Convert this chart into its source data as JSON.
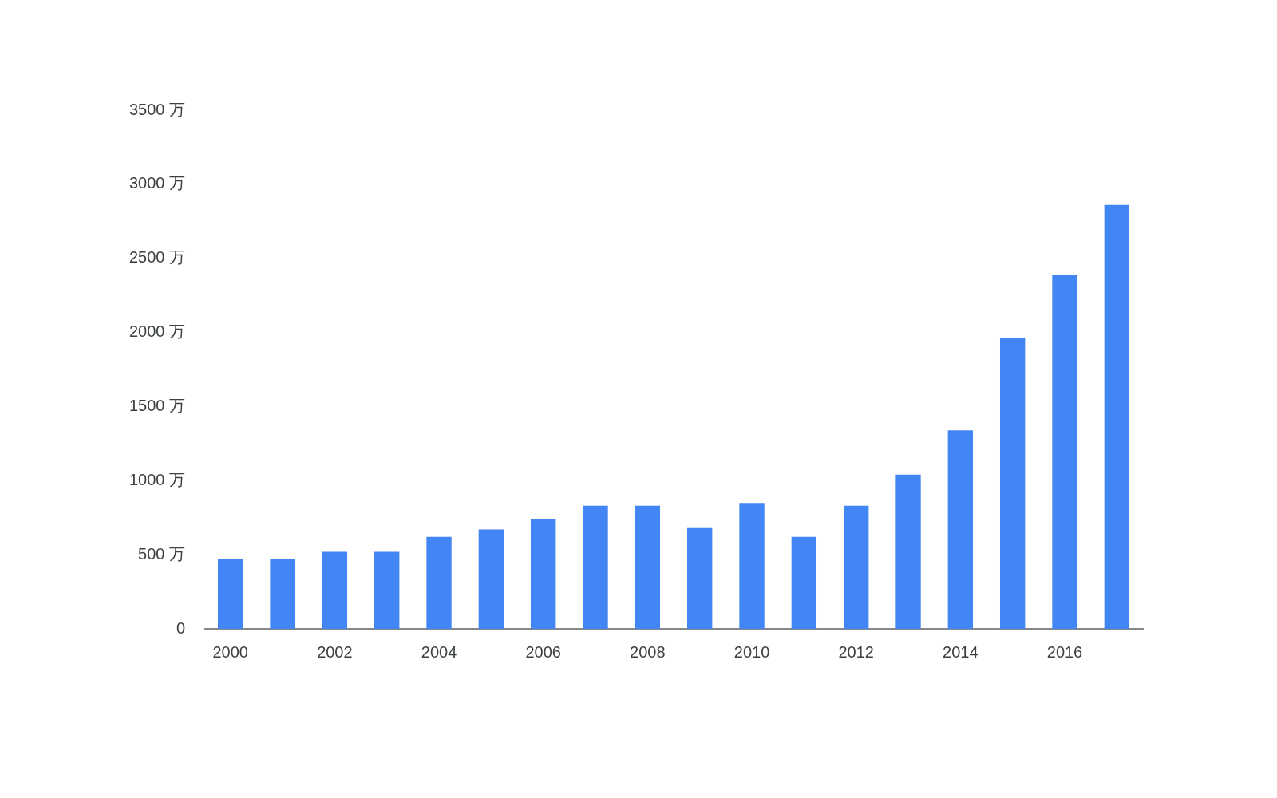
{
  "chart_data": {
    "type": "bar",
    "categories": [
      "2000",
      null,
      "2002",
      null,
      "2004",
      null,
      "2006",
      null,
      "2008",
      null,
      "2010",
      null,
      "2012",
      null,
      "2014",
      null,
      "2016",
      null
    ],
    "values": [
      470,
      470,
      520,
      520,
      620,
      670,
      740,
      830,
      830,
      680,
      850,
      620,
      830,
      1040,
      1340,
      1960,
      2390,
      2860
    ],
    "color": "#4285f4",
    "ylim": [
      0,
      3500
    ],
    "yticks": [
      0,
      {
        "value": 500,
        "label": "500 万"
      },
      {
        "value": 1000,
        "label": "1000 万"
      },
      {
        "value": 1500,
        "label": "1500 万"
      },
      {
        "value": 2000,
        "label": "2000 万"
      },
      {
        "value": 2500,
        "label": "2500 万"
      },
      {
        "value": 3000,
        "label": "3000 万"
      },
      {
        "value": 3500,
        "label": "3500 万"
      }
    ]
  }
}
